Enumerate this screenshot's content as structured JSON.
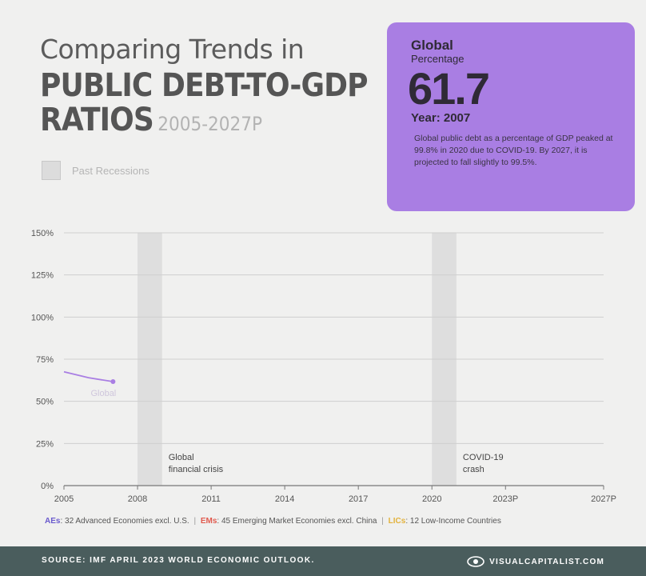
{
  "title": {
    "line1": "Comparing Trends in",
    "line2": "PUBLIC DEBT-TO-GDP",
    "line3": "RATIOS",
    "years": "2005-2027P"
  },
  "legend": {
    "label": "Past Recessions",
    "swatch_color": "#dcdcdc"
  },
  "card": {
    "heading": "Global",
    "subheading": "Percentage",
    "value": "61.7",
    "year": "Year: 2007",
    "description": "Global public debt as a percentage of GDP peaked at 99.8% in 2020 due to COVID-19. By 2027, it is projected to fall slightly to 99.5%.",
    "background": "#a97ee3"
  },
  "chart_data": {
    "type": "line",
    "ylim": [
      0,
      150
    ],
    "xlim": [
      2005,
      2027
    ],
    "yticks": [
      "0%",
      "25%",
      "50%",
      "75%",
      "100%",
      "125%",
      "150%"
    ],
    "xticks": [
      {
        "value": 2005,
        "label": "2005"
      },
      {
        "value": 2008,
        "label": "2008"
      },
      {
        "value": 2011,
        "label": "2011"
      },
      {
        "value": 2014,
        "label": "2014"
      },
      {
        "value": 2017,
        "label": "2017"
      },
      {
        "value": 2020,
        "label": "2020"
      },
      {
        "value": 2023,
        "label": "2023P"
      },
      {
        "value": 2027,
        "label": "2027P"
      }
    ],
    "recessions": [
      {
        "start": 2008,
        "end": 2009,
        "label_line1": "Global",
        "label_line2": "financial crisis"
      },
      {
        "start": 2020,
        "end": 2021,
        "label_line1": "COVID-19",
        "label_line2": "crash"
      }
    ],
    "series": [
      {
        "name": "Global",
        "color": "#a97ee3",
        "x": [
          2005,
          2006,
          2007
        ],
        "y": [
          67.5,
          64.0,
          61.7
        ]
      }
    ]
  },
  "source_line": {
    "aes_key": "AEs",
    "aes_text": ": 32 Advanced Economies excl. U.S.",
    "ems_key": "EMs",
    "ems_text": ": 45 Emerging Market Economies excl. China",
    "lics_key": "LICs",
    "lics_text": ": 12 Low-Income Countries",
    "separator": "|",
    "aes_color": "#6a5acd",
    "ems_color": "#e05a4e",
    "lics_color": "#e3b23c"
  },
  "footer": {
    "source": "SOURCE: IMF APRIL 2023 WORLD ECONOMIC OUTLOOK.",
    "brand": "VISUALCAPITALIST.COM"
  }
}
